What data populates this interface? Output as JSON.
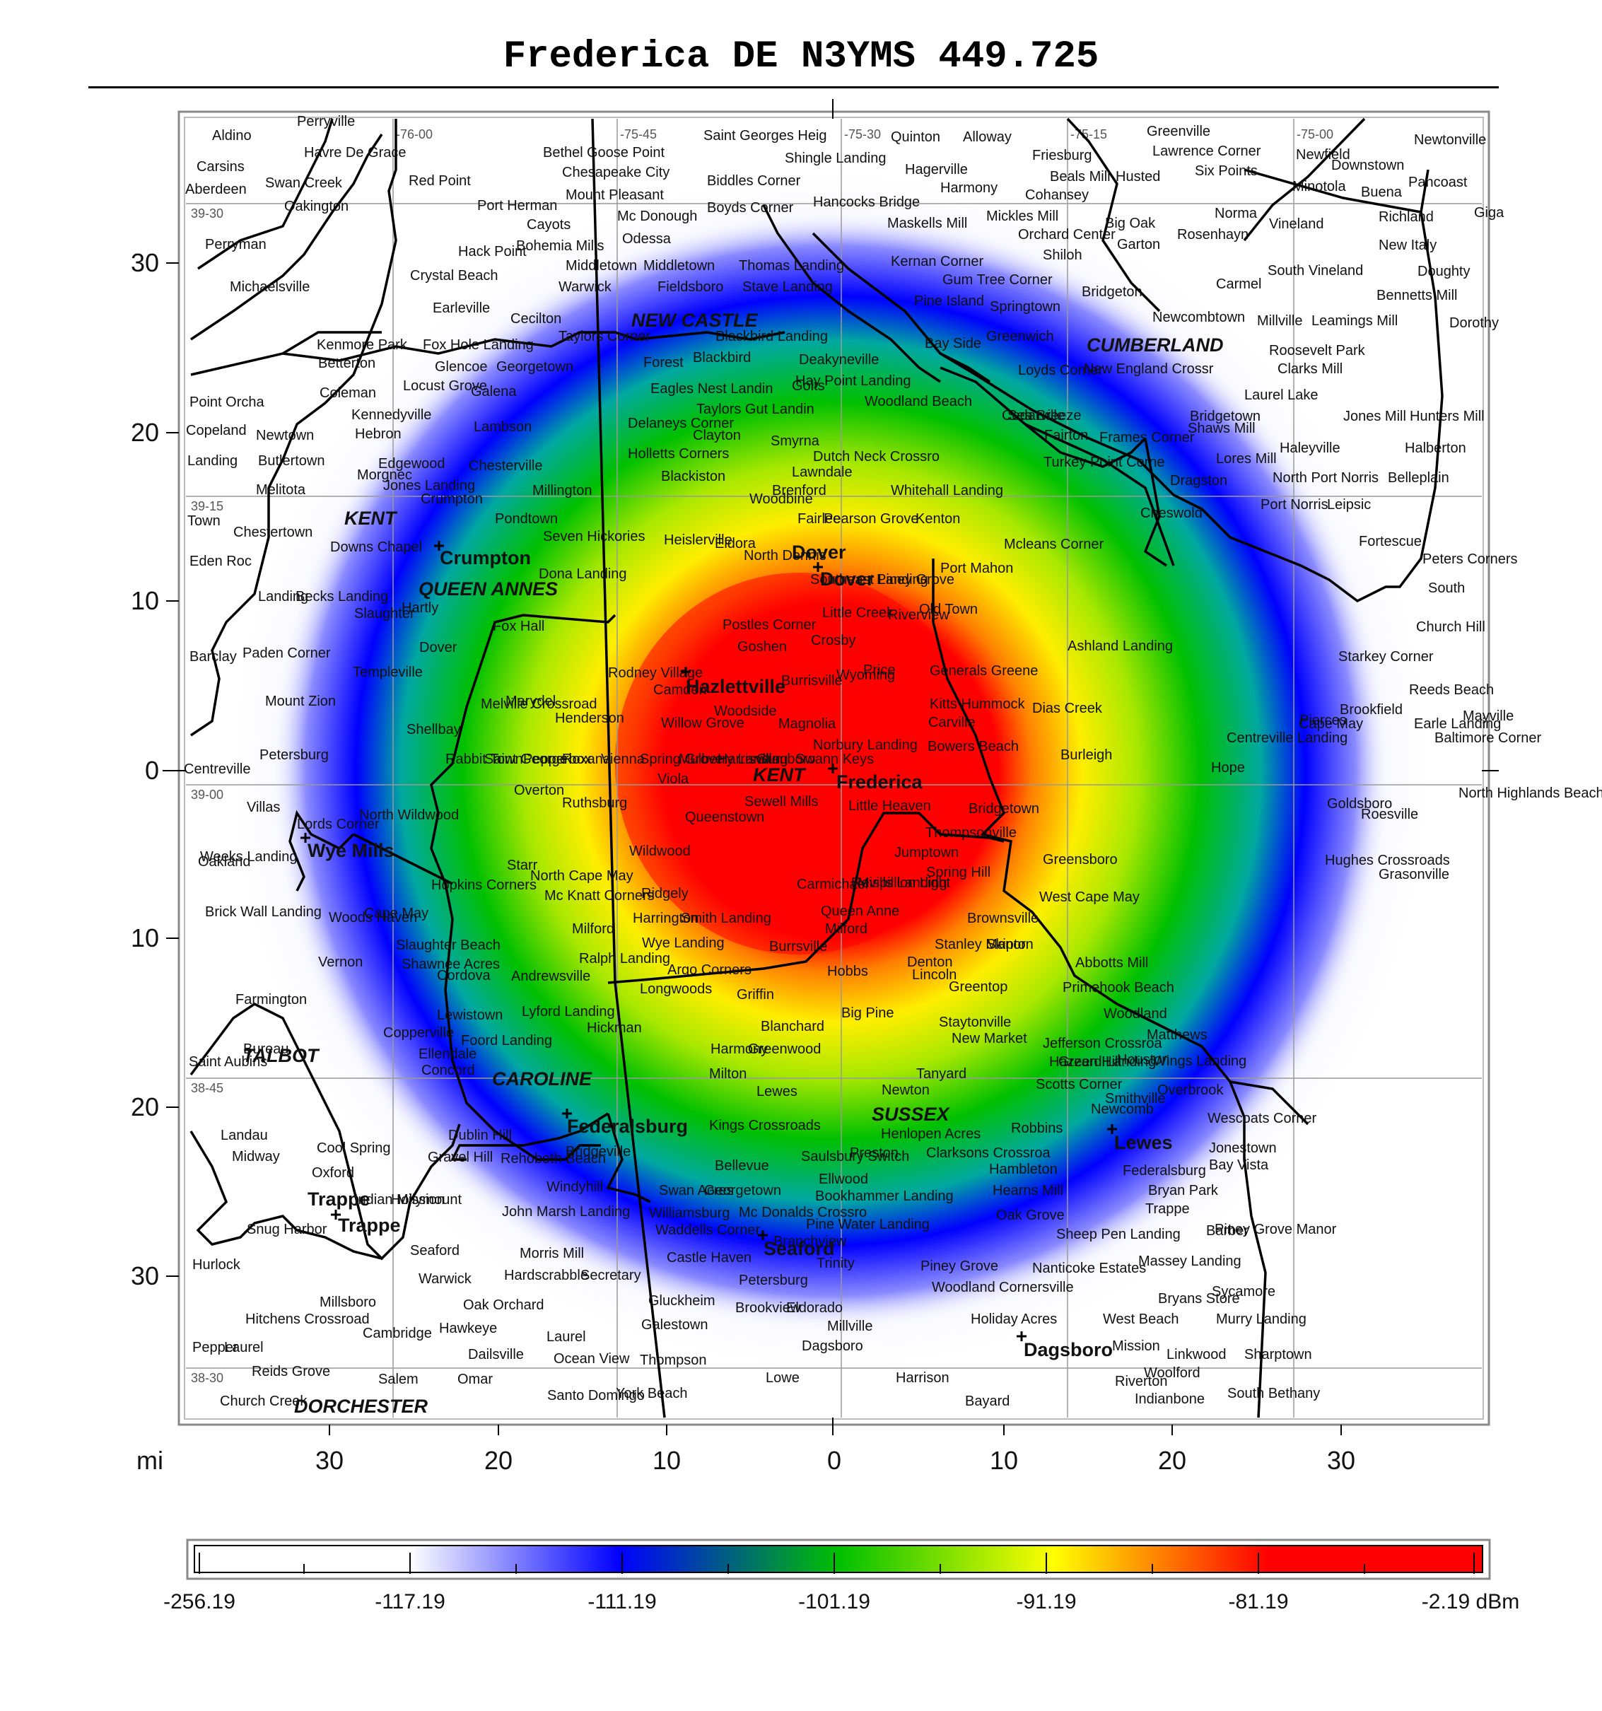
{
  "title": "Frederica DE N3YMS 449.725",
  "axis": {
    "unit_label": "mi",
    "x_ticks": [
      "30",
      "20",
      "10",
      "0",
      "10",
      "20",
      "30"
    ],
    "y_ticks": [
      "30",
      "20",
      "10",
      "0",
      "10",
      "20",
      "30"
    ]
  },
  "graticule": {
    "longitudes": [
      "-76-00",
      "-75-45",
      "-75-30",
      "-75-15",
      "-75-00"
    ],
    "latitudes": [
      "39-30",
      "39-15",
      "39-00",
      "38-45",
      "38-30"
    ]
  },
  "legend": {
    "labels": [
      "-256.19",
      "-117.19",
      "-111.19",
      "-101.19",
      "-91.19",
      "-81.19",
      "-2.19 dBm"
    ],
    "colors": [
      "#ffffff",
      "#0000ff",
      "#00c000",
      "#ffff00",
      "#ff0000"
    ]
  },
  "counties": [
    "NEW CASTLE",
    "CUMBERLAND",
    "KENT",
    "QUEEN ANNES",
    "KENT",
    "TALBOT",
    "CAROLINE",
    "SUSSEX",
    "DORCHESTER"
  ],
  "major_places": [
    "Dover",
    "Dover",
    "Hazlettville",
    "Frederica",
    "Crumpton",
    "Wye Mills",
    "Federalsburg",
    "Seaford",
    "Lewes",
    "Dagsboro",
    "Trappe",
    "Trappe"
  ],
  "places": [
    "Perryville",
    "Aldino",
    "Havre De Grace",
    "Carsins",
    "Swan Creek",
    "Aberdeen",
    "Oakington",
    "Red Point",
    "Perryman",
    "Michaelsville",
    "Bethel",
    "Goose Point",
    "Chesapeake City",
    "Saint Georges Heig",
    "Shingle Landing",
    "Quinton",
    "Alloway",
    "Greenville",
    "Lawrence Corner",
    "Newfield",
    "Downstown",
    "Newtonville",
    "Hagerville",
    "Friesburg",
    "Beals Mill",
    "Husted",
    "Six Points",
    "Minotola",
    "Buena",
    "Pancoast",
    "Mount Pleasant",
    "Biddles Corner",
    "Hancocks Bridge",
    "Harmony",
    "Cohansey",
    "Port Herman",
    "Cayots",
    "Mc Donough",
    "Boyds Corner",
    "Maskells Mill",
    "Mickles Mill",
    "Big Oak",
    "Norma",
    "Vineland",
    "Richland",
    "Giga",
    "Hack Point",
    "Bohemia Mills",
    "Odessa",
    "Orchard Center",
    "Garton",
    "Rosenhayn",
    "New Italy",
    "Crystal Beach",
    "Middletown",
    "Middletown",
    "Thomas Landing",
    "Kernan Corner",
    "Shiloh",
    "South Vineland",
    "Doughty",
    "Warwick",
    "Fieldsboro",
    "Stave Landing",
    "Gum Tree Corner",
    "Bridgeton",
    "Carmel",
    "Bennetts Mill",
    "Earleville",
    "Cecilton",
    "Pine Island",
    "Springtown",
    "Newcombtown",
    "Millville",
    "Leamings Mill",
    "Dorothy",
    "Kenmore Park",
    "Fox Hole Landing",
    "Taylors Corner",
    "Blackbird Landing",
    "Bay Side",
    "Greenwich",
    "Roosevelt Park",
    "Betterton",
    "Glencoe",
    "Georgetown",
    "Forest",
    "Blackbird",
    "Deakyneville",
    "Loyds Corner",
    "New England Crossr",
    "Clarks Mill",
    "Coleman",
    "Locust Grove",
    "Galena",
    "Golts",
    "Eagles Nest Landin",
    "Hay Point Landing",
    "Laurel Lake",
    "Point Orcha",
    "Kennedyville",
    "Taylors Gut Landin",
    "Woodland Beach",
    "Cedarville",
    "Bridgetown",
    "Jones Mill",
    "Hunters Mill",
    "Copeland",
    "Newtown",
    "Hebron",
    "Lambson",
    "Delaneys Corner",
    "Clayton",
    "Sea Breeze",
    "Fairton",
    "Shaws Mill",
    "Landing",
    "Butlertown",
    "Edgewood",
    "Smyrna",
    "Frames Corner",
    "Halberton",
    "Morgnec",
    "Chesterville",
    "Holletts Corners",
    "Dutch Neck Crossro",
    "Turkey Point Corne",
    "Lores Mill",
    "Haleyville",
    "Melitota",
    "Jones Landing",
    "Millington",
    "Blackiston",
    "Lawndale",
    "Dragston",
    "North Port Norris",
    "Belleplain",
    "Crumpton",
    "Brenford",
    "Whitehall Landing",
    "Port Norris",
    "Town",
    "Pondtown",
    "Pearson Grove",
    "Kenton",
    "Cheswold",
    "Leipsic",
    "Fortescue",
    "Woodbine",
    "Fairlee",
    "Chestertown",
    "Downs Chapel",
    "Seven Hickories",
    "Heislerville",
    "Eldora",
    "Mcleans Corner",
    "Peters Corners",
    "Eden Roc",
    "Dona Landing",
    "North Dennis",
    "Piney Grove",
    "Port Mahon",
    "South",
    "Landing",
    "Becks Landing",
    "Southeast Landing",
    "Slaughter",
    "Hartly",
    "Fox Hall",
    "Little Creek",
    "Old Town",
    "Riverview",
    "Church Hill",
    "Barclay",
    "Paden Corner",
    "Dover",
    "Postles Corner",
    "Goshen",
    "Crosby",
    "Ashland Landing",
    "Starkey Corner",
    "Templeville",
    "Rodney Village",
    "Wyoming",
    "Generals Greene",
    "Reeds Beach",
    "Mount Zion",
    "Marydel",
    "Camden",
    "Burrisville",
    "Price",
    "Brookfield",
    "Kitts Hummock",
    "Dias Creek",
    "Cape May",
    "Earle Landing",
    "Melville Crossroad",
    "Henderson",
    "Willow Grove",
    "Woodside",
    "Magnolia",
    "Pierces",
    "Mayville",
    "Shellbay",
    "Carville",
    "Centreville Landing",
    "Baltimore Corner",
    "Petersburg",
    "Bowers Beach",
    "Norbury Landing",
    "Burleigh",
    "Centreville",
    "Hope",
    "Viola",
    "Little Heaven",
    "Bridgetown",
    "Goldsboro",
    "Villas",
    "Overton",
    "North Highlands Beach",
    "Lords Corner",
    "North Wildwood",
    "Ruthsburg",
    "Sewell Mills",
    "Roesville",
    "Thompsonville",
    "Weeks Landing",
    "Queenstown",
    "Oakland",
    "Wildwood",
    "Starr",
    "Jumptown",
    "Greensboro",
    "Hughes Crossroads",
    "North Cape May",
    "Spring Hill",
    "Grasonville",
    "Hopkins Corners",
    "Carmichael",
    "Mc Knatt Corners",
    "Ridgely",
    "Revills Landing",
    "Mispillion Light",
    "West Cape May",
    "Brick Wall Landing",
    "Woods Haven",
    "Cape May",
    "Queen Anne",
    "Harrington",
    "Smith Landing",
    "Brownsville",
    "Milford",
    "Milford",
    "Slaughter Beach",
    "Wye Landing",
    "Skipton",
    "Ralph Landing",
    "Stanley Manor",
    "Burrsville",
    "Vernon",
    "Shawnee Acres",
    "Denton",
    "Abbotts Mill",
    "Cordova",
    "Andrewsville",
    "Argo Corners",
    "Hobbs",
    "Lincoln",
    "Farmington",
    "Longwoods",
    "Griffin",
    "Greentop",
    "Primehook Beach",
    "Lewistown",
    "Lyford Landing",
    "Big Pine",
    "Staytonville",
    "Woodland",
    "Copperville",
    "Hickman",
    "Blanchard",
    "Jefferson Crossroa",
    "Foord Landing",
    "Matthews",
    "Bureau",
    "Ellendale",
    "Greenwood",
    "New Market",
    "Hazzard Landing",
    "Wings Landing",
    "Concord",
    "Harmony",
    "Houston",
    "Green Hill",
    "Saint Aubins",
    "Tanyard",
    "Scotts Corner",
    "Milton",
    "Newton",
    "Smithville",
    "Overbrook",
    "Lewes",
    "Newcomb",
    "Robbins",
    "Wescoats Corner",
    "Dublin Hill",
    "Kings Crossroads",
    "Henlopen Acres",
    "Landau",
    "Cool Spring",
    "Bridgeville",
    "Jonestown",
    "Midway",
    "Gravel Hill",
    "Rehoboth Beach",
    "Preston",
    "Clarksons Crossroa",
    "Saulsbury Switch",
    "Bellevue",
    "Hambleton",
    "Federalsburg",
    "Bay Vista",
    "Oxford",
    "Windyhill",
    "Ellwood",
    "Swan Acres",
    "Georgetown",
    "Bryan Park",
    "Hearns Mill",
    "Indian Mission",
    "Hollymount",
    "Bookhammer Landing",
    "Trappe",
    "Williamsburg",
    "Mc Donalds Crossro",
    "Oak Grove",
    "Snug Harbor",
    "John Marsh Landing",
    "Pine Water Landing",
    "Barber",
    "Waddells Corner",
    "Piney Grove Manor",
    "Sheep Pen Landing",
    "Branchview",
    "Seaford",
    "Morris Mill",
    "Castle Haven",
    "Hurlock",
    "Piney Grove",
    "Trinity",
    "Nanticoke Estates",
    "Massey Landing",
    "Warwick",
    "Hardscrabble",
    "Secretary",
    "Petersburg",
    "Woodland",
    "Cornersville",
    "Bryans Store",
    "Sycamore",
    "Millsboro",
    "Oak Orchard",
    "Gluckheim",
    "Brookview",
    "Eldorado",
    "Hitchens Crossroad",
    "Holiday Acres",
    "West Beach",
    "Millville",
    "Murry Landing",
    "Cambridge",
    "Hawkeye",
    "Galestown",
    "Laurel",
    "Laurel",
    "Dailsville",
    "Mission",
    "Dagsboro",
    "Pepper",
    "Ocean View",
    "Thompson",
    "Linkwood",
    "Sharptown",
    "Reids Grove",
    "Woolford",
    "Salem",
    "Omar",
    "Lowe",
    "Harrison",
    "Riverton",
    "Santo Domingo",
    "York Beach",
    "South Bethany",
    "Church Creek",
    "Bayard",
    "Indianbone",
    "Rabbit Town",
    "Saint George",
    "Pepperbox",
    "Roxana",
    "Vienna",
    "Spring Grove",
    "Mulberry Landing",
    "Harrisville",
    "Gumboro",
    "Swann Keys"
  ]
}
